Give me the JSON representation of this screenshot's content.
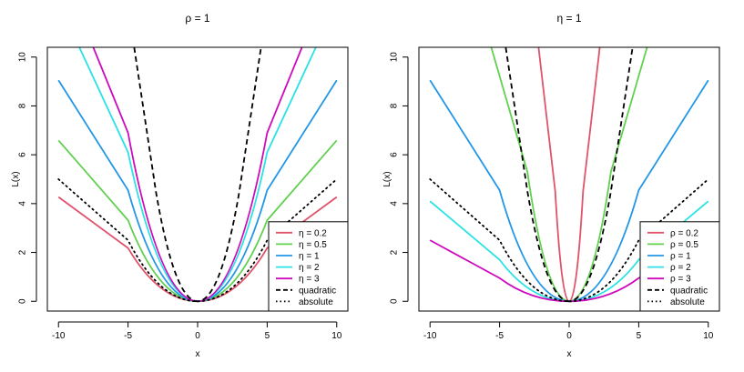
{
  "chart_data": [
    {
      "type": "line",
      "title": "ρ = 1",
      "xlabel": "x",
      "ylabel": "L(x)",
      "xlim": [
        -10.8,
        10.8
      ],
      "ylim": [
        -0.4,
        10.4
      ],
      "xticks": [
        -10,
        -5,
        0,
        5,
        10
      ],
      "yticks": [
        0,
        2,
        4,
        6,
        8,
        10
      ],
      "x_range": [
        -10,
        10
      ],
      "legend_position": "bottom-right",
      "series": [
        {
          "name": "η = 0.2",
          "color": "#DF536B",
          "dash": "solid",
          "points": [
            [
              -10,
              4.27
            ],
            [
              -5,
              2.18
            ],
            [
              0,
              0
            ],
            [
              5,
              2.18
            ],
            [
              10,
              4.27
            ]
          ]
        },
        {
          "name": "η = 0.5",
          "color": "#61D04F",
          "dash": "solid",
          "points": [
            [
              -10,
              6.59
            ],
            [
              -5,
              3.32
            ],
            [
              0,
              0
            ],
            [
              5,
              3.32
            ],
            [
              10,
              6.59
            ]
          ]
        },
        {
          "name": "η = 1",
          "color": "#2297E6",
          "dash": "solid",
          "points": [
            [
              -10,
              9.05
            ],
            [
              -5,
              4.55
            ],
            [
              0,
              0
            ],
            [
              5,
              4.55
            ],
            [
              10,
              9.05
            ]
          ]
        },
        {
          "name": "η = 2",
          "color": "#28E2E5",
          "dash": "solid",
          "points": [
            [
              -8.5,
              10.4
            ],
            [
              -5,
              6.1
            ],
            [
              0,
              0
            ],
            [
              5,
              6.1
            ],
            [
              8.5,
              10.4
            ]
          ]
        },
        {
          "name": "η = 3",
          "color": "#CD0BBC",
          "dash": "solid",
          "points": [
            [
              -7.5,
              10.4
            ],
            [
              -5,
              6.9
            ],
            [
              0,
              0
            ],
            [
              5,
              6.9
            ],
            [
              7.5,
              10.4
            ]
          ]
        },
        {
          "name": "quadratic",
          "color": "#000000",
          "dash": "dashed",
          "points": [
            [
              -4.56,
              10.4
            ],
            [
              -3,
              4.5
            ],
            [
              0,
              0
            ],
            [
              3,
              4.5
            ],
            [
              4.56,
              10.4
            ]
          ]
        },
        {
          "name": "absolute",
          "color": "#000000",
          "dash": "dotted",
          "points": [
            [
              -10,
              5.0
            ],
            [
              -5,
              2.5
            ],
            [
              0,
              0
            ],
            [
              5,
              2.5
            ],
            [
              10,
              5.0
            ]
          ]
        }
      ]
    },
    {
      "type": "line",
      "title": "η = 1",
      "xlabel": "x",
      "ylabel": "L(x)",
      "xlim": [
        -10.8,
        10.8
      ],
      "ylim": [
        -0.4,
        10.4
      ],
      "xticks": [
        -10,
        -5,
        0,
        5,
        10
      ],
      "yticks": [
        0,
        2,
        4,
        6,
        8,
        10
      ],
      "x_range": [
        -10,
        10
      ],
      "legend_position": "bottom-right",
      "series": [
        {
          "name": "ρ = 0.2",
          "color": "#DF536B",
          "dash": "solid",
          "points": [
            [
              -2.2,
              10.4
            ],
            [
              -1,
              4.5
            ],
            [
              0,
              0
            ],
            [
              1,
              4.5
            ],
            [
              2.2,
              10.4
            ]
          ]
        },
        {
          "name": "ρ = 0.5",
          "color": "#61D04F",
          "dash": "solid",
          "points": [
            [
              -5.6,
              10.4
            ],
            [
              -3,
              5.3
            ],
            [
              0,
              0
            ],
            [
              3,
              5.3
            ],
            [
              5.6,
              10.4
            ]
          ]
        },
        {
          "name": "ρ = 1",
          "color": "#2297E6",
          "dash": "solid",
          "points": [
            [
              -10,
              9.05
            ],
            [
              -5,
              4.55
            ],
            [
              0,
              0
            ],
            [
              5,
              4.55
            ],
            [
              10,
              9.05
            ]
          ]
        },
        {
          "name": "ρ = 2",
          "color": "#28E2E5",
          "dash": "solid",
          "points": [
            [
              -10,
              4.1
            ],
            [
              -5,
              1.7
            ],
            [
              0,
              0
            ],
            [
              5,
              1.7
            ],
            [
              10,
              4.1
            ]
          ]
        },
        {
          "name": "ρ = 3",
          "color": "#CD0BBC",
          "dash": "solid",
          "points": [
            [
              -10,
              2.5
            ],
            [
              -5,
              0.95
            ],
            [
              0,
              0
            ],
            [
              5,
              0.95
            ],
            [
              10,
              2.5
            ]
          ]
        },
        {
          "name": "quadratic",
          "color": "#000000",
          "dash": "dashed",
          "points": [
            [
              -4.56,
              10.4
            ],
            [
              -3,
              4.5
            ],
            [
              0,
              0
            ],
            [
              3,
              4.5
            ],
            [
              4.56,
              10.4
            ]
          ]
        },
        {
          "name": "absolute",
          "color": "#000000",
          "dash": "dotted",
          "points": [
            [
              -10,
              5.0
            ],
            [
              -5,
              2.5
            ],
            [
              0,
              0
            ],
            [
              5,
              2.5
            ],
            [
              10,
              5.0
            ]
          ]
        }
      ]
    }
  ]
}
